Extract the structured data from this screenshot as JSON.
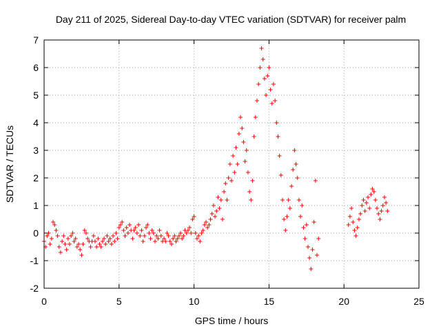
{
  "chart_data": {
    "type": "scatter",
    "title": "Day 211 of 2025, Sidereal Day-to-day VTEC variation (SDTVAR) for receiver palm",
    "xlabel": "GPS time / hours",
    "ylabel": "SDTVAR / TECUs",
    "xlim": [
      0,
      25
    ],
    "ylim": [
      -2,
      7
    ],
    "x_ticks": [
      0,
      5,
      10,
      15,
      20,
      25
    ],
    "y_ticks": [
      -2,
      -1,
      0,
      1,
      2,
      3,
      4,
      5,
      6,
      7
    ],
    "x_tick_labels": [
      "0",
      "5",
      "10",
      "15",
      "20",
      "25"
    ],
    "y_tick_labels": [
      "-2",
      "-1",
      "0",
      "1",
      "2",
      "3",
      "4",
      "5",
      "6",
      "7"
    ],
    "grid": true,
    "marker": "plus",
    "series": [
      {
        "name": "SDTVAR",
        "color": "#ff0000",
        "points": [
          [
            0.0,
            -0.3
          ],
          [
            0.1,
            -0.5
          ],
          [
            0.2,
            -0.1
          ],
          [
            0.3,
            0.0
          ],
          [
            0.4,
            -0.4
          ],
          [
            0.5,
            -0.2
          ],
          [
            0.6,
            0.4
          ],
          [
            0.7,
            0.3
          ],
          [
            0.8,
            0.1
          ],
          [
            0.9,
            -0.1
          ],
          [
            1.0,
            -0.5
          ],
          [
            1.1,
            -0.7
          ],
          [
            1.2,
            -0.3
          ],
          [
            1.3,
            -0.1
          ],
          [
            1.4,
            -0.4
          ],
          [
            1.5,
            -0.6
          ],
          [
            1.6,
            -0.2
          ],
          [
            1.7,
            -0.4
          ],
          [
            1.8,
            -0.1
          ],
          [
            1.9,
            0.0
          ],
          [
            2.0,
            -0.3
          ],
          [
            2.1,
            -0.2
          ],
          [
            2.2,
            -0.5
          ],
          [
            2.3,
            -0.4
          ],
          [
            2.4,
            -0.6
          ],
          [
            2.5,
            -0.8
          ],
          [
            2.6,
            -0.4
          ],
          [
            2.7,
            0.1
          ],
          [
            2.8,
            0.0
          ],
          [
            2.9,
            -0.2
          ],
          [
            3.0,
            -0.3
          ],
          [
            3.1,
            -0.5
          ],
          [
            3.2,
            -0.3
          ],
          [
            3.3,
            -0.1
          ],
          [
            3.4,
            -0.3
          ],
          [
            3.5,
            -0.5
          ],
          [
            3.6,
            -0.2
          ],
          [
            3.7,
            -0.4
          ],
          [
            3.8,
            -0.5
          ],
          [
            3.9,
            -0.3
          ],
          [
            4.0,
            -0.2
          ],
          [
            4.1,
            -0.4
          ],
          [
            4.2,
            -0.1
          ],
          [
            4.3,
            -0.3
          ],
          [
            4.4,
            -0.2
          ],
          [
            4.5,
            -0.4
          ],
          [
            4.6,
            -0.1
          ],
          [
            4.7,
            -0.3
          ],
          [
            4.8,
            0.0
          ],
          [
            4.9,
            -0.2
          ],
          [
            5.0,
            0.2
          ],
          [
            5.1,
            0.3
          ],
          [
            5.2,
            0.4
          ],
          [
            5.3,
            0.1
          ],
          [
            5.4,
            -0.1
          ],
          [
            5.5,
            0.2
          ],
          [
            5.6,
            0.0
          ],
          [
            5.7,
            0.3
          ],
          [
            5.8,
            0.1
          ],
          [
            5.9,
            -0.2
          ],
          [
            6.0,
            0.1
          ],
          [
            6.1,
            0.2
          ],
          [
            6.2,
            0.0
          ],
          [
            6.3,
            0.3
          ],
          [
            6.4,
            -0.1
          ],
          [
            6.5,
            0.1
          ],
          [
            6.6,
            -0.3
          ],
          [
            6.7,
            -0.1
          ],
          [
            6.8,
            0.2
          ],
          [
            6.9,
            0.3
          ],
          [
            7.0,
            0.0
          ],
          [
            7.1,
            -0.2
          ],
          [
            7.2,
            0.1
          ],
          [
            7.3,
            0.0
          ],
          [
            7.4,
            -0.3
          ],
          [
            7.5,
            -0.1
          ],
          [
            7.6,
            -0.2
          ],
          [
            7.7,
            0.1
          ],
          [
            7.8,
            -0.1
          ],
          [
            7.9,
            -0.3
          ],
          [
            8.0,
            -0.2
          ],
          [
            8.1,
            -0.3
          ],
          [
            8.2,
            0.0
          ],
          [
            8.3,
            -0.1
          ],
          [
            8.4,
            -0.3
          ],
          [
            8.5,
            -0.4
          ],
          [
            8.6,
            -0.2
          ],
          [
            8.7,
            -0.1
          ],
          [
            8.8,
            -0.3
          ],
          [
            8.9,
            -0.2
          ],
          [
            9.0,
            -0.1
          ],
          [
            9.1,
            0.0
          ],
          [
            9.2,
            -0.2
          ],
          [
            9.3,
            -0.1
          ],
          [
            9.4,
            0.1
          ],
          [
            9.5,
            0.0
          ],
          [
            9.6,
            0.1
          ],
          [
            9.7,
            0.2
          ],
          [
            9.8,
            0.0
          ],
          [
            9.9,
            0.5
          ],
          [
            10.0,
            0.6
          ],
          [
            10.1,
            0.0
          ],
          [
            10.2,
            -0.2
          ],
          [
            10.3,
            -0.1
          ],
          [
            10.4,
            -0.3
          ],
          [
            10.5,
            0.0
          ],
          [
            10.6,
            0.1
          ],
          [
            10.7,
            0.3
          ],
          [
            10.8,
            0.4
          ],
          [
            10.9,
            0.2
          ],
          [
            11.0,
            0.3
          ],
          [
            11.1,
            0.5
          ],
          [
            11.2,
            0.7
          ],
          [
            11.3,
            1.0
          ],
          [
            11.4,
            0.6
          ],
          [
            11.5,
            0.8
          ],
          [
            11.6,
            1.3
          ],
          [
            11.7,
            0.9
          ],
          [
            11.8,
            1.2
          ],
          [
            11.9,
            0.5
          ],
          [
            12.0,
            1.5
          ],
          [
            12.1,
            1.8
          ],
          [
            12.2,
            1.2
          ],
          [
            12.3,
            2.0
          ],
          [
            12.4,
            2.5
          ],
          [
            12.5,
            1.9
          ],
          [
            12.6,
            2.8
          ],
          [
            12.7,
            2.2
          ],
          [
            12.8,
            3.1
          ],
          [
            12.9,
            2.5
          ],
          [
            13.0,
            3.6
          ],
          [
            13.1,
            4.2
          ],
          [
            13.2,
            3.8
          ],
          [
            13.3,
            3.3
          ],
          [
            13.4,
            2.6
          ],
          [
            13.5,
            3.0
          ],
          [
            13.6,
            2.2
          ],
          [
            13.7,
            1.5
          ],
          [
            13.8,
            1.2
          ],
          [
            13.9,
            1.9
          ],
          [
            14.0,
            3.5
          ],
          [
            14.1,
            4.2
          ],
          [
            14.2,
            4.8
          ],
          [
            14.3,
            5.4
          ],
          [
            14.4,
            6.0
          ],
          [
            14.5,
            6.7
          ],
          [
            14.6,
            6.3
          ],
          [
            14.7,
            5.6
          ],
          [
            14.8,
            5.0
          ],
          [
            14.9,
            5.7
          ],
          [
            15.0,
            6.0
          ],
          [
            15.1,
            5.2
          ],
          [
            15.2,
            4.7
          ],
          [
            15.3,
            5.4
          ],
          [
            15.4,
            4.8
          ],
          [
            15.5,
            4.0
          ],
          [
            15.6,
            3.5
          ],
          [
            15.7,
            2.8
          ],
          [
            15.8,
            2.1
          ],
          [
            15.9,
            1.2
          ],
          [
            16.0,
            0.5
          ],
          [
            16.1,
            0.1
          ],
          [
            16.2,
            0.6
          ],
          [
            16.3,
            1.2
          ],
          [
            16.4,
            0.9
          ],
          [
            16.5,
            1.7
          ],
          [
            16.6,
            2.3
          ],
          [
            16.7,
            3.0
          ],
          [
            16.8,
            2.5
          ],
          [
            16.9,
            2.0
          ],
          [
            17.0,
            1.2
          ],
          [
            17.1,
            0.6
          ],
          [
            17.2,
            1.0
          ],
          [
            17.3,
            0.2
          ],
          [
            17.4,
            -0.2
          ],
          [
            17.5,
            0.3
          ],
          [
            17.6,
            -0.5
          ],
          [
            17.7,
            -0.9
          ],
          [
            17.8,
            -1.3
          ],
          [
            17.9,
            -0.6
          ],
          [
            18.0,
            0.4
          ],
          [
            18.1,
            1.9
          ],
          [
            18.2,
            -0.8
          ],
          [
            18.3,
            -0.2
          ],
          [
            20.3,
            0.3
          ],
          [
            20.4,
            0.6
          ],
          [
            20.5,
            0.9
          ],
          [
            20.6,
            0.4
          ],
          [
            20.7,
            0.1
          ],
          [
            20.8,
            -0.1
          ],
          [
            20.9,
            0.2
          ],
          [
            21.0,
            0.5
          ],
          [
            21.1,
            0.7
          ],
          [
            21.2,
            1.0
          ],
          [
            21.3,
            1.2
          ],
          [
            21.4,
            0.8
          ],
          [
            21.5,
            1.1
          ],
          [
            21.6,
            1.3
          ],
          [
            21.7,
            0.9
          ],
          [
            21.8,
            1.4
          ],
          [
            21.9,
            1.6
          ],
          [
            22.0,
            1.5
          ],
          [
            22.1,
            1.2
          ],
          [
            22.2,
            0.9
          ],
          [
            22.3,
            0.7
          ],
          [
            22.4,
            0.5
          ],
          [
            22.5,
            0.8
          ],
          [
            22.6,
            1.0
          ],
          [
            22.7,
            1.3
          ],
          [
            22.8,
            1.1
          ],
          [
            22.9,
            0.8
          ]
        ]
      }
    ]
  }
}
